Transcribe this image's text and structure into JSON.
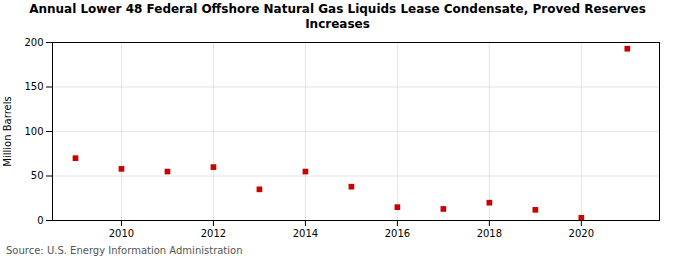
{
  "chart_data": {
    "type": "scatter",
    "title": "Annual Lower 48 Federal Offshore Natural Gas Liquids Lease Condensate, Proved Reserves\nIncreases",
    "y_label": "Million Barrels",
    "annotations": [
      "Source: U.S. Energy Information Administration"
    ],
    "x": [
      2009,
      2010,
      2011,
      2012,
      2013,
      2014,
      2015,
      2016,
      2017,
      2018,
      2019,
      2020,
      2021
    ],
    "values": [
      70,
      58,
      55,
      60,
      35,
      55,
      38,
      15,
      13,
      20,
      12,
      3,
      193
    ],
    "color": "#cc0000",
    "marker": "square",
    "xlim": [
      2008.5,
      2021.7
    ],
    "xticks": [
      2010,
      2012,
      2014,
      2016,
      2018,
      2020
    ],
    "ylim": [
      0,
      200
    ],
    "yticks": [
      0,
      50,
      100,
      150,
      200
    ],
    "grid": true
  }
}
